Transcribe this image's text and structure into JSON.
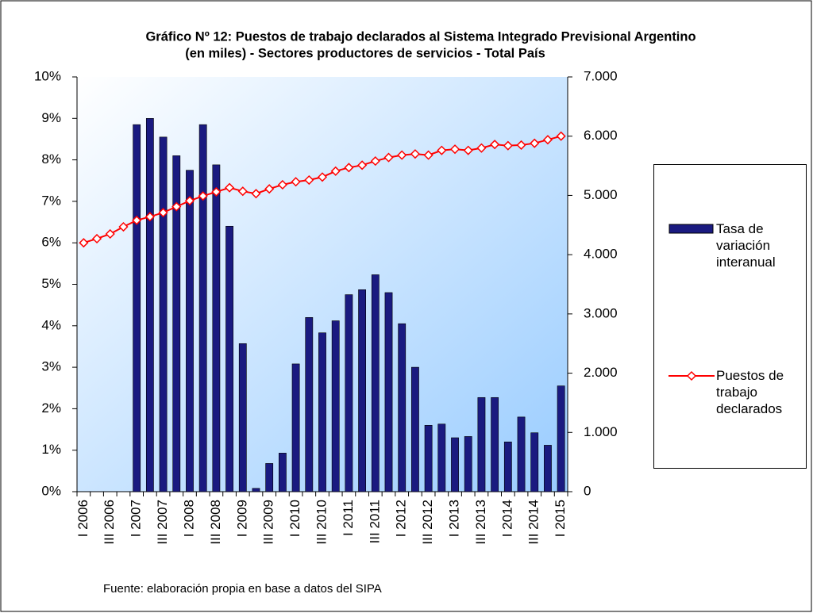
{
  "chart_data": {
    "type": "bar",
    "title": [
      "Gráfico Nº 12: Puestos de trabajo declarados al Sistema Integrado Previsional Argentino",
      "(en miles) - Sectores productores de servicios - Total País"
    ],
    "source": "Fuente: elaboración propia en base a datos del SIPA",
    "categories": [
      "I 2006",
      null,
      "III 2006",
      null,
      "I 2007",
      null,
      "III 2007",
      null,
      "I 2008",
      null,
      "III 2008",
      null,
      "I 2009",
      null,
      "III 2009",
      null,
      "I 2010",
      null,
      "III 2010",
      null,
      "I 2011",
      null,
      "III 2011",
      null,
      "I 2012",
      null,
      "III 2012",
      null,
      "I 2013",
      null,
      "III 2013",
      null,
      "I 2014",
      null,
      "III 2014",
      null,
      "I 2015"
    ],
    "series": [
      {
        "name": "Tasa de variación interanual",
        "type": "bar",
        "axis": "y",
        "color": "#1a1a80",
        "values": [
          null,
          null,
          null,
          null,
          8.85,
          9.0,
          8.55,
          8.1,
          7.75,
          8.85,
          7.88,
          6.4,
          3.57,
          0.08,
          0.68,
          0.93,
          3.08,
          4.2,
          3.83,
          4.12,
          4.75,
          4.87,
          5.23,
          4.8,
          4.05,
          3.0,
          1.6,
          1.63,
          1.3,
          1.33,
          2.27,
          2.27,
          1.2,
          1.8,
          1.42,
          1.12,
          2.55
        ]
      },
      {
        "name": "Puestos de trabajo declarados",
        "type": "line",
        "axis": "y2",
        "color": "#ff0000",
        "values": [
          4200,
          4270,
          4350,
          4470,
          4580,
          4640,
          4710,
          4810,
          4910,
          4990,
          5060,
          5130,
          5070,
          5030,
          5110,
          5180,
          5230,
          5260,
          5310,
          5410,
          5470,
          5510,
          5580,
          5640,
          5680,
          5700,
          5680,
          5760,
          5780,
          5760,
          5800,
          5860,
          5840,
          5850,
          5880,
          5940,
          6000
        ]
      }
    ],
    "ylim": [
      0,
      10
    ],
    "yticks": [
      {
        "value": 0,
        "label": "0%"
      },
      {
        "value": 1,
        "label": "1%"
      },
      {
        "value": 2,
        "label": "2%"
      },
      {
        "value": 3,
        "label": "3%"
      },
      {
        "value": 4,
        "label": "4%"
      },
      {
        "value": 5,
        "label": "5%"
      },
      {
        "value": 6,
        "label": "6%"
      },
      {
        "value": 7,
        "label": "7%"
      },
      {
        "value": 8,
        "label": "8%"
      },
      {
        "value": 9,
        "label": "9%"
      },
      {
        "value": 10,
        "label": "10%"
      }
    ],
    "y2lim": [
      0,
      7000
    ],
    "y2ticks": [
      0,
      {
        "value": 1000,
        "label": "1.000"
      },
      {
        "value": 2000,
        "label": "2.000"
      },
      {
        "value": 3000,
        "label": "3.000"
      },
      {
        "value": 4000,
        "label": "4.000"
      },
      {
        "value": 5000,
        "label": "5.000"
      },
      {
        "value": 6000,
        "label": "6.000"
      },
      {
        "value": 7000,
        "label": "7.000"
      }
    ],
    "grid": false,
    "legend": "right"
  }
}
